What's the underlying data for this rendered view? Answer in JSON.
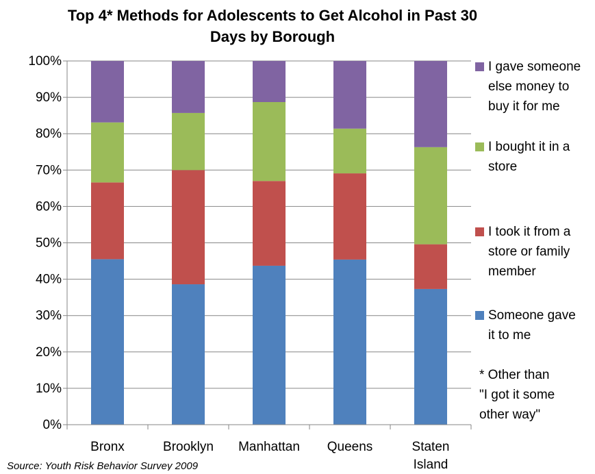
{
  "chart_data": {
    "type": "bar",
    "stacked": true,
    "title": "Top 4* Methods  for Adolescents to Get Alcohol in Past 30 Days by Borough",
    "title_lines": [
      "Top 4* Methods  for Adolescents to Get Alcohol in Past 30",
      "Days by Borough"
    ],
    "categories": [
      "Bronx",
      "Brooklyn",
      "Manhattan",
      "Queens",
      "Staten Island"
    ],
    "category_lines": [
      [
        "Bronx"
      ],
      [
        "Brooklyn"
      ],
      [
        "Manhattan"
      ],
      [
        "Queens"
      ],
      [
        "Staten",
        "Island"
      ]
    ],
    "series": [
      {
        "name": "Someone gave it to me",
        "name_lines": [
          "Someone gave",
          "it to me"
        ],
        "color": "#4F81BD",
        "values": [
          45.5,
          38.6,
          43.7,
          45.4,
          37.3
        ]
      },
      {
        "name": "I took it from a store or family member",
        "name_lines": [
          "I took it from a",
          "store or family",
          "member"
        ],
        "color": "#C0504D",
        "values": [
          21.1,
          31.4,
          23.3,
          23.7,
          12.3
        ]
      },
      {
        "name": "I bought it in a store",
        "name_lines": [
          "I bought it in a",
          "store"
        ],
        "color": "#9BBB59",
        "values": [
          16.5,
          15.7,
          21.7,
          12.3,
          26.7
        ]
      },
      {
        "name": "I gave someone else money to buy it for me",
        "name_lines": [
          "I gave someone",
          "else money to",
          "buy it for me"
        ],
        "color": "#8064A2",
        "values": [
          16.9,
          14.3,
          11.3,
          18.6,
          23.7
        ]
      }
    ],
    "yticks": [
      "0%",
      "10%",
      "20%",
      "30%",
      "40%",
      "50%",
      "60%",
      "70%",
      "80%",
      "90%",
      "100%"
    ],
    "ylim": [
      0,
      100
    ],
    "grid": true,
    "legend_position": "right",
    "legend_order": [
      3,
      2,
      1,
      0
    ],
    "footnote_lines": [
      "* Other than",
      "\"I got it some",
      "other way\""
    ],
    "source": "Source: Youth Risk Behavior Survey 2009"
  }
}
